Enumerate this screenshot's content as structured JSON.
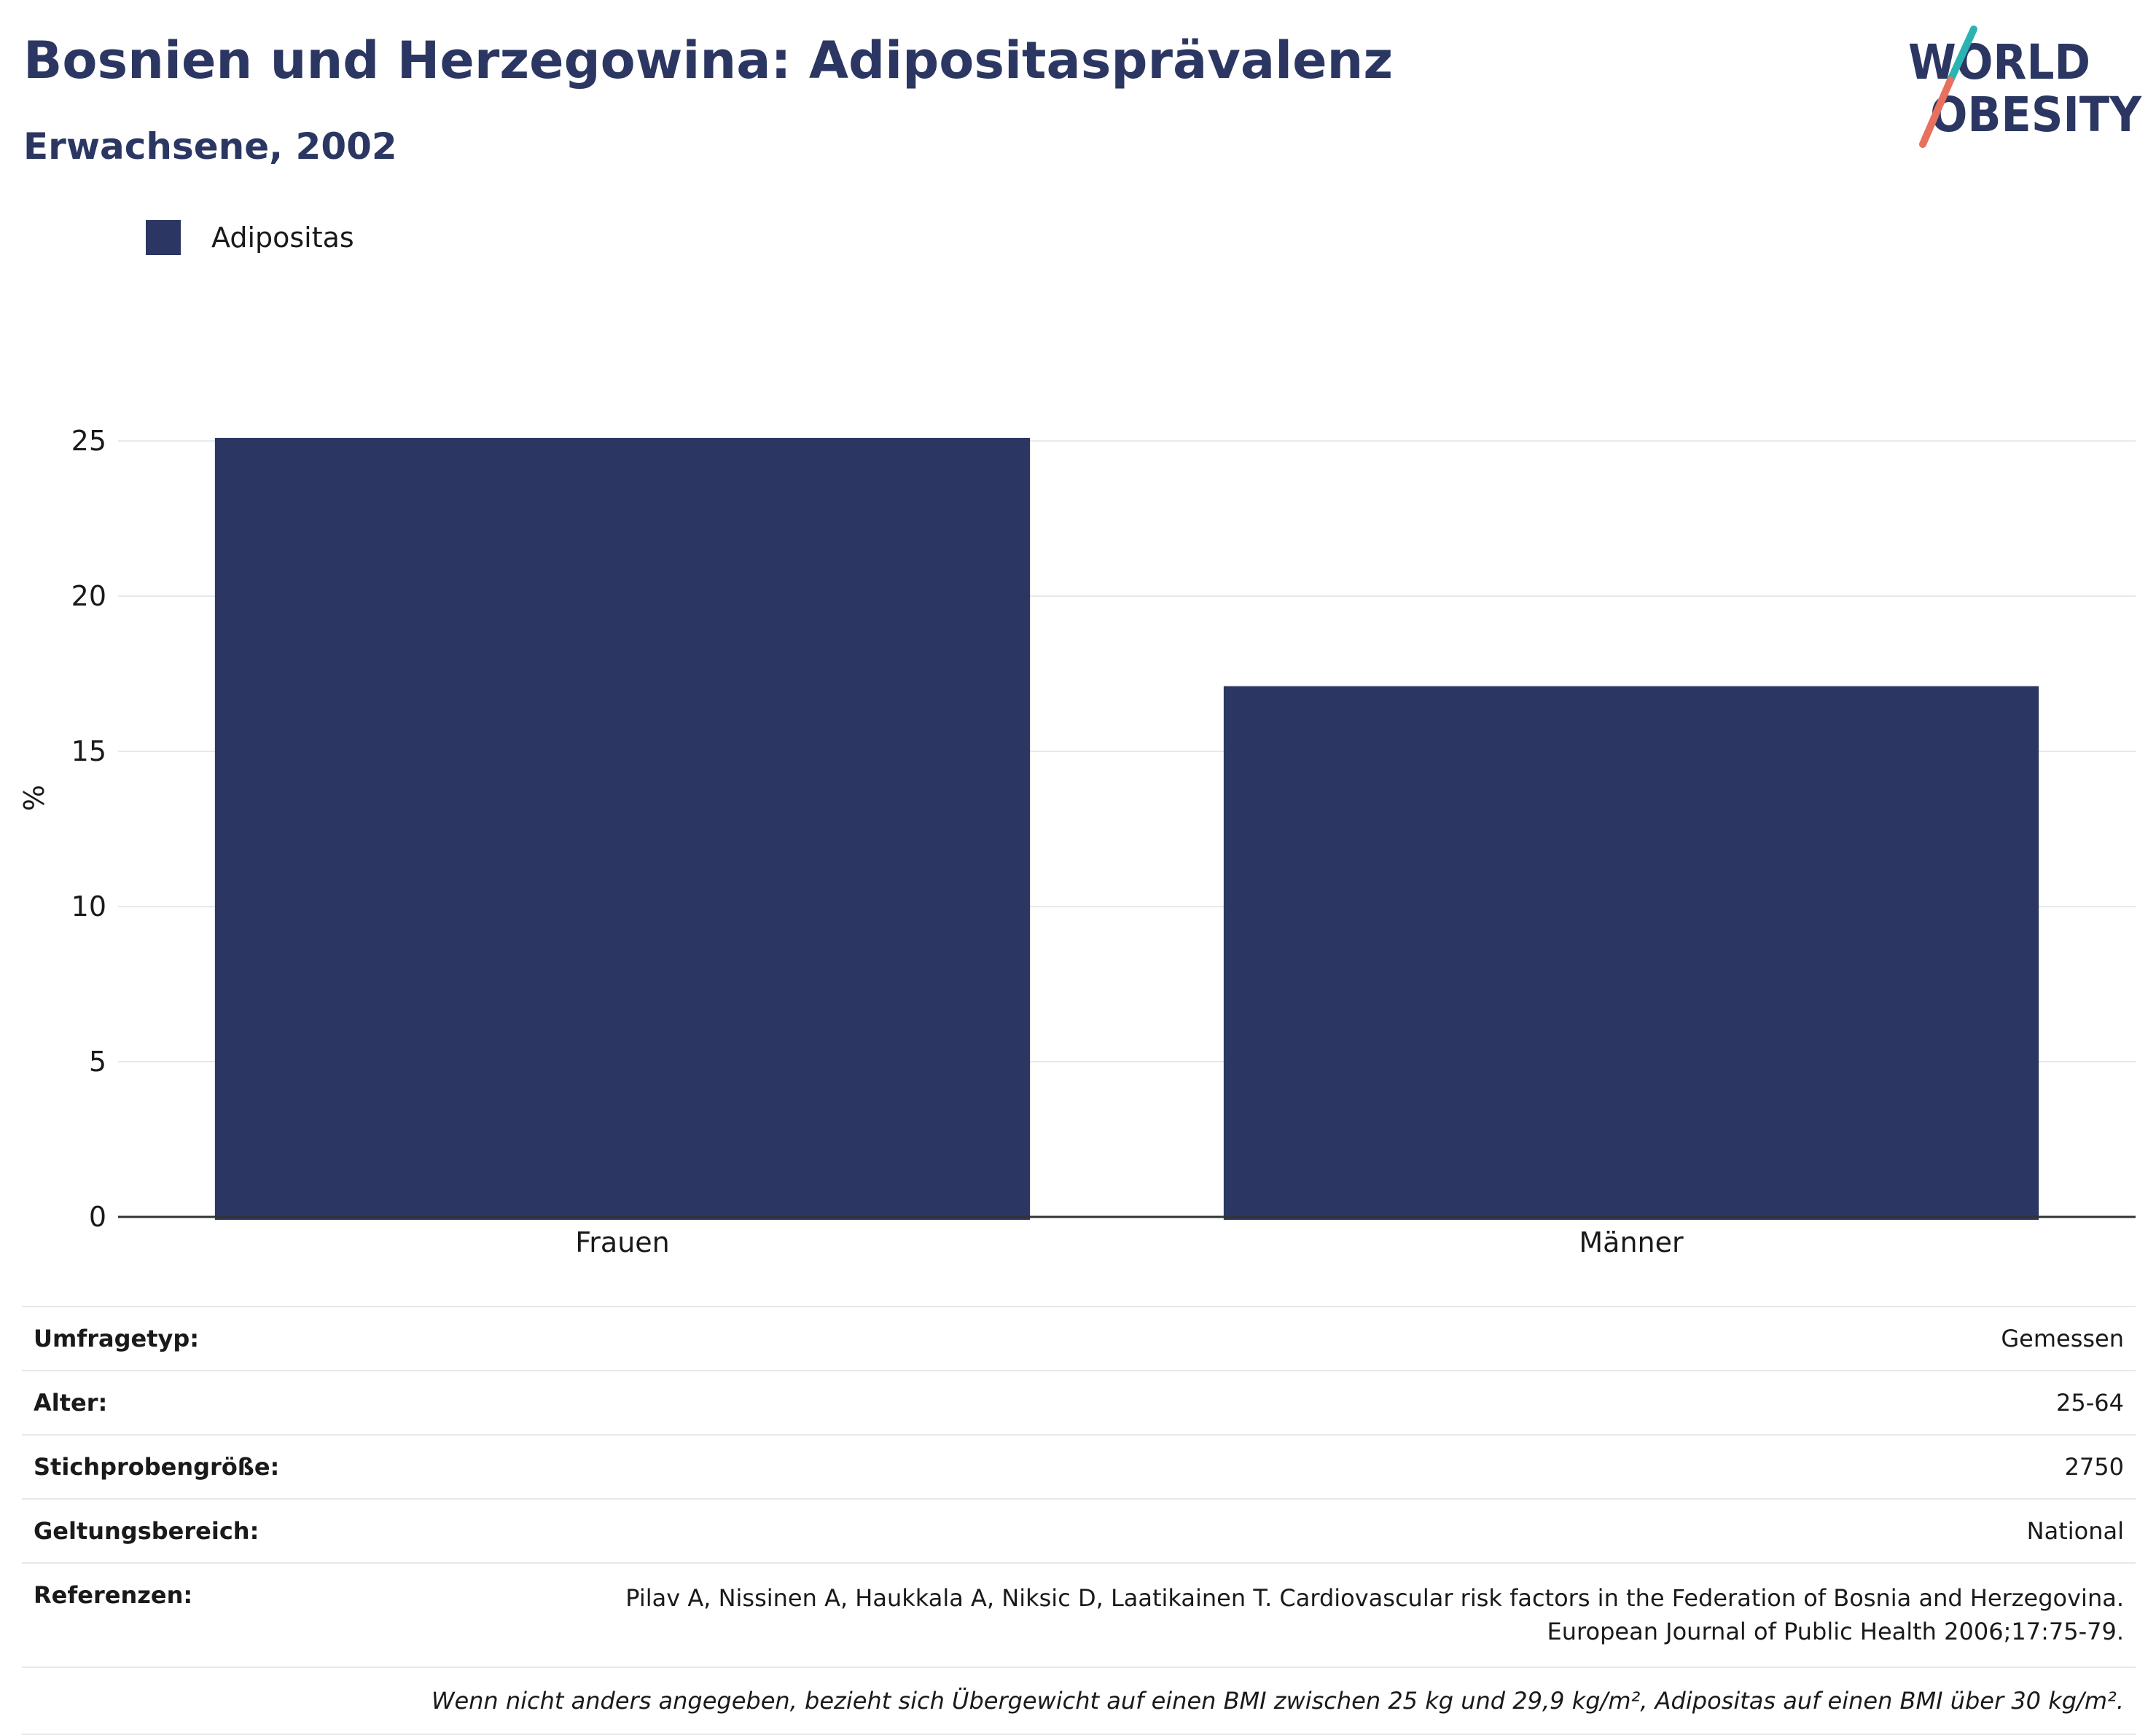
{
  "header": {
    "title": "Bosnien und Herzegowina: Adipositasprävalenz",
    "subtitle": "Erwachsene, 2002"
  },
  "logo": {
    "line1": "WORLD",
    "line2": "OBESITY",
    "colors": {
      "text": "#2b3762",
      "slash_top": "#2bb3b1",
      "slash_bottom": "#e8705e"
    }
  },
  "chart_data": {
    "type": "bar",
    "categories": [
      "Frauen",
      "Männer"
    ],
    "series": [
      {
        "name": "Adipositas",
        "values": [
          25.1,
          17.1
        ],
        "color": "#2b3762"
      }
    ],
    "ylabel": "%",
    "ylim": [
      0,
      27
    ],
    "yticks": [
      0,
      5,
      10,
      15,
      20,
      25
    ],
    "grid": true,
    "legend_position": "top-left"
  },
  "meta": {
    "survey_type": {
      "label": "Umfragetyp:",
      "value": "Gemessen"
    },
    "age": {
      "label": "Alter:",
      "value": "25-64"
    },
    "sample_size": {
      "label": "Stichprobengröße:",
      "value": "2750"
    },
    "scope": {
      "label": "Geltungsbereich:",
      "value": "National"
    },
    "references": {
      "label": "Referenzen:",
      "line1": "Pilav A, Nissinen A, Haukkala A, Niksic D, Laatikainen T. Cardiovascular risk factors in the Federation of Bosnia and Herzegovina.",
      "line2": "European Journal of Public Health 2006;17:75-79."
    },
    "note": "Wenn nicht anders angegeben, bezieht sich Übergewicht auf einen BMI zwischen 25 kg und 29,9 kg/m², Adipositas auf einen BMI über 30 kg/m²."
  }
}
